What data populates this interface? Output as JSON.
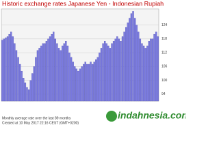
{
  "chart_data": {
    "type": "bar",
    "title": "Historic exchange rates Japanese Yen - Indonesian Rupiah",
    "values": [
      117.5,
      118,
      118.5,
      119,
      120,
      121,
      119,
      116,
      113,
      110,
      107,
      104,
      101,
      99,
      97,
      96,
      100,
      103,
      106,
      110,
      113,
      114,
      115,
      116,
      116,
      117,
      118,
      119,
      120,
      121,
      118,
      116,
      114,
      113,
      115,
      116,
      117,
      115,
      112,
      110,
      108,
      106,
      105,
      104,
      105,
      106,
      107,
      108,
      107,
      107,
      108,
      107,
      108,
      109,
      110,
      112,
      114,
      116,
      117,
      116,
      115,
      114,
      116,
      117,
      118,
      119,
      118,
      117,
      119,
      121,
      123,
      125,
      127,
      129,
      130,
      127,
      124,
      121,
      118,
      116,
      115,
      114,
      115,
      117,
      118,
      118,
      120,
      121,
      119
    ],
    "color": "#7b7be0",
    "ylim": [
      91,
      131
    ],
    "yticks": [
      94,
      100,
      106,
      112,
      118,
      124
    ],
    "grid": true,
    "notes": [
      "Monthly average rate over the last 89 months",
      "Created at 10 May 2017 22:16 CEST (GMT+0200)"
    ],
    "logo": "indahnesia.com"
  }
}
